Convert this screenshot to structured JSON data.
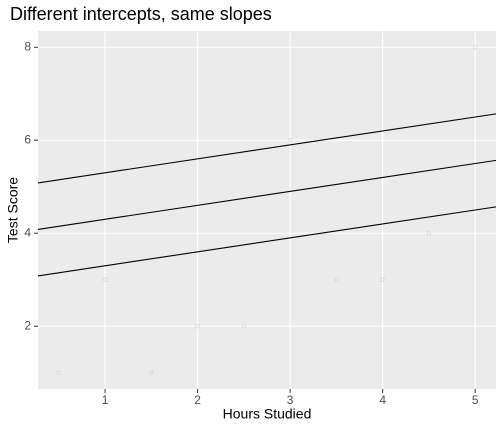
{
  "chart_data": {
    "type": "scatter",
    "title": "Different intercepts, same slopes",
    "x_label": "Hours Studied",
    "y_label": "Test Score",
    "x": [
      0.5,
      1,
      1.5,
      2,
      2.5,
      3,
      3.5,
      4,
      4.5,
      5
    ],
    "values": [
      1,
      3,
      1,
      2,
      2,
      6,
      3,
      3,
      4,
      8
    ],
    "color": "#d9d9d9",
    "lines": [
      {
        "intercept": 5,
        "slope": 0.3
      },
      {
        "intercept": 4,
        "slope": 0.3
      },
      {
        "intercept": 3,
        "slope": 0.3
      }
    ],
    "line_color": "#000000",
    "xlim": [
      0.275,
      5.225
    ],
    "ylim": [
      0.65,
      8.35
    ],
    "xticks": [
      1,
      2,
      3,
      4,
      5
    ],
    "yticks": [
      2,
      4,
      6,
      8
    ],
    "grid": true
  }
}
